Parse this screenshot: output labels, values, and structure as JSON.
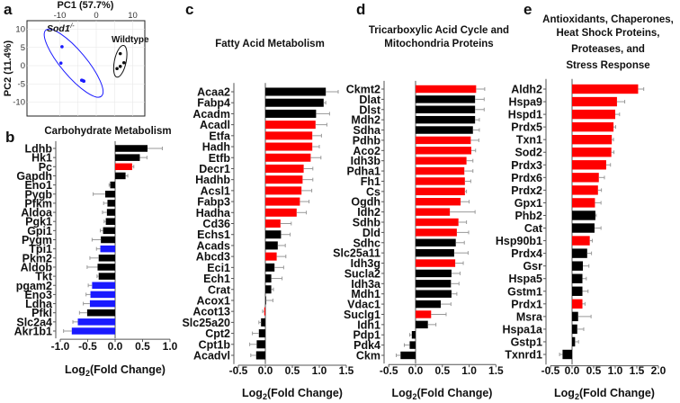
{
  "chart_data": [
    {
      "type": "scatter",
      "panel_label": "a",
      "xlabel": "PC1 (57.7%)",
      "ylabel": "PC2 (11.4%)",
      "xlim": [
        -14,
        14
      ],
      "ylim": [
        -14,
        12.5
      ],
      "xticks": [
        "-10",
        "0",
        "10"
      ],
      "yticks": [
        "10",
        "5",
        "0",
        "-5",
        "-10"
      ],
      "grid": true,
      "series": [
        {
          "name": "Sod1",
          "name_suffix": "-/-",
          "color": "#1a1aff",
          "points": [
            [
              -9.4,
              5.2
            ],
            [
              -9.7,
              0.7
            ],
            [
              -4.0,
              -4.0
            ],
            [
              -3.4,
              -4.25
            ],
            [
              -3.7,
              -4.1
            ]
          ]
        },
        {
          "name": "Wildtype",
          "color": "#111111",
          "points": [
            [
              6.6,
              3.3
            ],
            [
              7.6,
              0.8
            ],
            [
              6.6,
              -0.2
            ],
            [
              5.7,
              -0.8
            ]
          ]
        }
      ]
    },
    {
      "type": "bar",
      "orientation": "horizontal",
      "panel_label": "b",
      "title": [
        "Carbohydrate Metabolism"
      ],
      "xlabel": "Log2(Fold Change)",
      "xlim": [
        -1.0,
        1.0
      ],
      "xticks": [
        "-1.0",
        "-0.5",
        "0.0",
        "0.5",
        "1.0"
      ],
      "categories": [
        "Ldhb",
        "Hk1",
        "Pc",
        "Gapdh",
        "Eno1",
        "Pygb",
        "Pfkm",
        "Aldoa",
        "Pgk1",
        "Gpi1",
        "Pygm",
        "Tpi1",
        "Pkm2",
        "Aldob",
        "Tkt",
        "pgam2",
        "Eno3",
        "Ldha",
        "Pfkl",
        "Slc2a4",
        "Akr1b1"
      ],
      "values": [
        0.59,
        0.45,
        0.31,
        0.19,
        -0.09,
        -0.18,
        -0.14,
        -0.15,
        -0.17,
        -0.22,
        -0.26,
        -0.27,
        -0.3,
        -0.32,
        -0.3,
        -0.42,
        -0.45,
        -0.46,
        -0.51,
        -0.68,
        -0.79
      ],
      "errors": [
        0.27,
        0.13,
        0.03,
        0.04,
        0.02,
        0.22,
        0.07,
        0.08,
        0.03,
        0.05,
        0.16,
        0.07,
        0.16,
        0.19,
        0.03,
        0.07,
        0.08,
        0.12,
        0.14,
        0.09,
        0.15
      ],
      "colors": [
        "k",
        "k",
        "r",
        "k",
        "k",
        "k",
        "k",
        "k",
        "k",
        "k",
        "k",
        "b",
        "k",
        "k",
        "k",
        "b",
        "b",
        "b",
        "k",
        "b",
        "b"
      ]
    },
    {
      "type": "bar",
      "orientation": "horizontal",
      "panel_label": "c",
      "title": [
        "Fatty Acid Metabolism"
      ],
      "xlabel": "Log2(Fold Change)",
      "xlim": [
        -0.5,
        1.5
      ],
      "xticks": [
        "-0.5",
        "0.0",
        "0.5",
        "1.0",
        "1.5"
      ],
      "categories": [
        "Acaa2",
        "Fabp4",
        "Acadm",
        "Acadl",
        "Etfa",
        "Hadh",
        "Etfb",
        "Decr1",
        "Hadhb",
        "Acsl1",
        "Fabp3",
        "Hadha",
        "Cd36",
        "Echs1",
        "Acads",
        "Abcd3",
        "Eci1",
        "Ech1",
        "Crat",
        "Acox1",
        "Acot13",
        "Slc25a20",
        "Cpt2",
        "Cpt1b",
        "Acadvl"
      ],
      "values": [
        1.12,
        1.08,
        0.94,
        0.93,
        0.87,
        0.87,
        0.84,
        0.71,
        0.69,
        0.67,
        0.64,
        0.58,
        0.28,
        0.29,
        0.23,
        0.21,
        0.17,
        0.11,
        0.11,
        0.01,
        -0.02,
        -0.08,
        -0.12,
        -0.16,
        -0.17
      ],
      "errors": [
        0.23,
        0.04,
        0.25,
        0.21,
        0.17,
        0.13,
        0.19,
        0.17,
        0.19,
        0.19,
        0.17,
        0.18,
        0.2,
        0.17,
        0.14,
        0.17,
        0.17,
        0.2,
        0.04,
        0.13,
        0.03,
        0.04,
        0.12,
        0.13,
        0.1
      ],
      "colors": [
        "k",
        "k",
        "k",
        "r",
        "r",
        "r",
        "r",
        "r",
        "r",
        "r",
        "r",
        "r",
        "r",
        "k",
        "k",
        "r",
        "k",
        "k",
        "k",
        "k",
        "r",
        "k",
        "k",
        "k",
        "k"
      ]
    },
    {
      "type": "bar",
      "orientation": "horizontal",
      "panel_label": "d",
      "title": [
        "Tricarboxylic Acid Cycle and",
        "Mitochondria Proteins"
      ],
      "xlabel": "Log2(Fold Change)",
      "xlim": [
        -0.5,
        1.5
      ],
      "xticks": [
        "-0.5",
        "0.0",
        "0.5",
        "1.0",
        "1.5"
      ],
      "categories": [
        "Ckmt2",
        "Dlat",
        "Dlst",
        "Mdh2",
        "Sdha",
        "Pdhb",
        "Aco2",
        "Idh3b",
        "Pdha1",
        "Fh1",
        "Cs",
        "Ogdh",
        "Idh2",
        "Sdhb",
        "Dld",
        "Sdhc",
        "Slc25a11",
        "Idh3g",
        "Sucla2",
        "Idh3a",
        "Mdh1",
        "Vdac1",
        "Suclg1",
        "Idh1",
        "Pdp1",
        "Pdk4",
        "Ckm"
      ],
      "values": [
        1.13,
        1.11,
        1.11,
        1.11,
        1.07,
        1.03,
        1.04,
        0.95,
        0.91,
        0.92,
        0.92,
        0.84,
        0.64,
        0.8,
        0.77,
        0.75,
        0.72,
        0.74,
        0.67,
        0.66,
        0.67,
        0.47,
        0.29,
        0.23,
        -0.07,
        -0.11,
        -0.28
      ],
      "errors": [
        0.16,
        0.17,
        0.17,
        0.08,
        0.12,
        0.15,
        0.08,
        0.12,
        0.16,
        0.11,
        0.03,
        0.16,
        0.47,
        0.15,
        0.22,
        0.16,
        0.26,
        0.15,
        0.16,
        0.15,
        0.1,
        0.19,
        0.28,
        0.15,
        0.04,
        0.1,
        0.08
      ],
      "colors": [
        "r",
        "k",
        "k",
        "k",
        "k",
        "r",
        "r",
        "r",
        "r",
        "r",
        "r",
        "r",
        "r",
        "r",
        "r",
        "k",
        "k",
        "r",
        "k",
        "k",
        "k",
        "k",
        "r",
        "k",
        "k",
        "k",
        "k"
      ]
    },
    {
      "type": "bar",
      "orientation": "horizontal",
      "panel_label": "e",
      "title": [
        "Antioxidants, Chaperones,",
        "Heat Shock Proteins,",
        "Proteases, and",
        "Stress Response"
      ],
      "xlabel": "Log2(Fold Change)",
      "xlim": [
        -0.5,
        2.0
      ],
      "xticks": [
        "-0.5",
        "0.0",
        "0.5",
        "1.0",
        "1.5",
        "2.0"
      ],
      "categories": [
        "Aldh2",
        "Hspa9",
        "Hspd1",
        "Prdx5",
        "Txn1",
        "Sod2",
        "Prdx3",
        "Prdx6",
        "Prdx2",
        "Gpx1",
        "Phb2",
        "Cat",
        "Hsp90b1",
        "Prdx4",
        "Gsr",
        "Hspa5",
        "Gstm1",
        "Prdx1",
        "Msra",
        "Hspa1a",
        "Gstp1",
        "Txnrd1"
      ],
      "values": [
        1.53,
        1.04,
        1.0,
        0.96,
        0.92,
        0.91,
        0.79,
        0.62,
        0.6,
        0.53,
        0.54,
        0.52,
        0.41,
        0.35,
        0.25,
        0.24,
        0.24,
        0.24,
        0.14,
        0.12,
        0.07,
        -0.22
      ],
      "errors": [
        0.13,
        0.18,
        0.1,
        0.05,
        0.04,
        0.06,
        0.1,
        0.13,
        0.08,
        0.14,
        0.02,
        0.15,
        0.06,
        0.1,
        0.14,
        0.09,
        0.13,
        0.06,
        0.3,
        0.15,
        0.08,
        0.07
      ],
      "colors": [
        "r",
        "r",
        "r",
        "r",
        "r",
        "r",
        "r",
        "r",
        "r",
        "r",
        "k",
        "k",
        "r",
        "k",
        "k",
        "k",
        "k",
        "r",
        "k",
        "k",
        "k",
        "k"
      ]
    }
  ],
  "palette": {
    "r": "#ff0000",
    "k": "#000000",
    "b": "#1a1aff",
    "error": "#999999"
  }
}
